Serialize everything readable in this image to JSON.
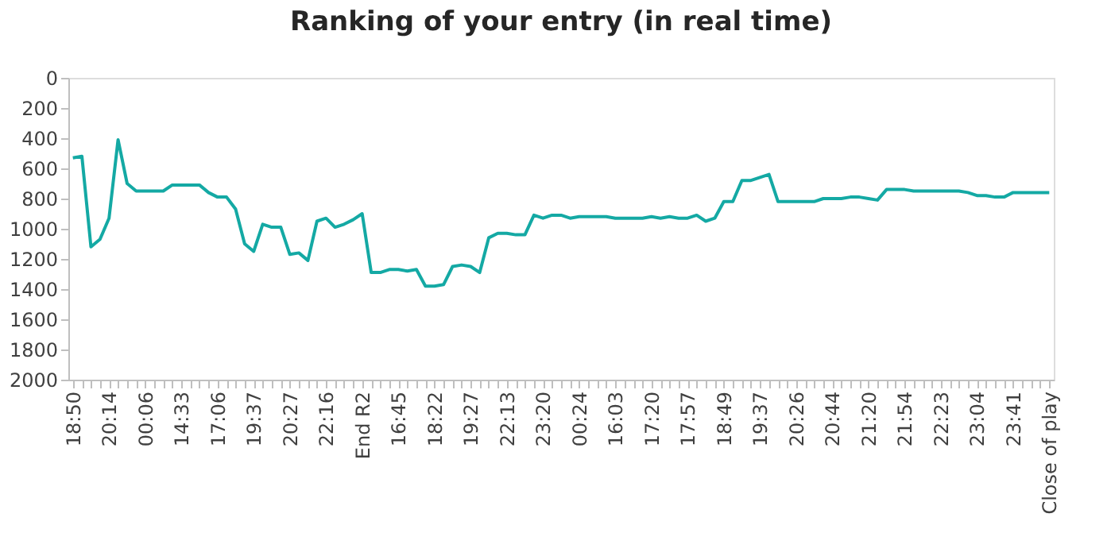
{
  "chart_data": {
    "type": "line",
    "title": "Ranking of your entry (in real time)",
    "categories": [
      "18:50",
      null,
      null,
      null,
      "20:14",
      null,
      null,
      null,
      "00:06",
      null,
      null,
      null,
      "14:33",
      null,
      null,
      null,
      "17:06",
      null,
      null,
      null,
      "19:37",
      null,
      null,
      null,
      "20:27",
      null,
      null,
      null,
      "22:16",
      null,
      null,
      null,
      "End R2",
      null,
      null,
      null,
      "16:45",
      null,
      null,
      null,
      "18:22",
      null,
      null,
      null,
      "19:27",
      null,
      null,
      null,
      "22:13",
      null,
      null,
      null,
      "23:20",
      null,
      null,
      null,
      "00:24",
      null,
      null,
      null,
      "16:03",
      null,
      null,
      null,
      "17:20",
      null,
      null,
      null,
      "17:57",
      null,
      null,
      null,
      "18:49",
      null,
      null,
      null,
      "19:37",
      null,
      null,
      null,
      "20:26",
      null,
      null,
      null,
      "20:44",
      null,
      null,
      null,
      "21:20",
      null,
      null,
      null,
      "21:54",
      null,
      null,
      null,
      "22:23",
      null,
      null,
      null,
      "23:04",
      null,
      null,
      null,
      "23:41",
      null,
      null,
      null,
      "Close of play"
    ],
    "series": [
      {
        "color": "#14a9a4",
        "values": [
          530,
          520,
          1120,
          1070,
          930,
          410,
          700,
          750,
          750,
          750,
          750,
          710,
          710,
          710,
          710,
          760,
          790,
          790,
          870,
          1100,
          1150,
          970,
          990,
          990,
          1170,
          1160,
          1210,
          950,
          930,
          990,
          970,
          940,
          900,
          1290,
          1290,
          1270,
          1270,
          1280,
          1270,
          1380,
          1380,
          1370,
          1250,
          1240,
          1250,
          1290,
          1060,
          1030,
          1030,
          1040,
          1040,
          910,
          930,
          910,
          910,
          930,
          920,
          920,
          920,
          920,
          930,
          930,
          930,
          930,
          920,
          930,
          920,
          930,
          930,
          910,
          950,
          930,
          820,
          820,
          680,
          680,
          660,
          640,
          820,
          820,
          820,
          820,
          820,
          800,
          800,
          800,
          790,
          790,
          800,
          810,
          740,
          740,
          740,
          750,
          750,
          750,
          750,
          750,
          750,
          760,
          780,
          780,
          790,
          790,
          760,
          760,
          760,
          760,
          760
        ]
      }
    ],
    "ylim": [
      2000,
      0
    ],
    "yticks": [
      0,
      200,
      400,
      600,
      800,
      1000,
      1200,
      1400,
      1600,
      1800,
      2000
    ],
    "grid": false,
    "legend": false,
    "line_style": "solid",
    "marker": "none"
  }
}
